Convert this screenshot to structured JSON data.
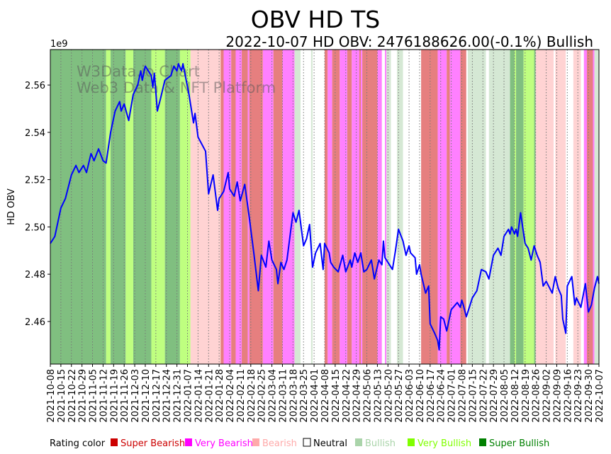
{
  "chart_data": {
    "type": "line",
    "title": "OBV HD TS",
    "subtitle": "2022-10-07 HD OBV: 2476188626.00(-0.1%) Bullish",
    "ylabel": "HD OBV",
    "y_multiplier_label": "1e9",
    "x_start_date": "2021-10-08",
    "x_unit": "days since 2021-10-08",
    "xlim": [
      0,
      364
    ],
    "ylim": [
      2.442,
      2.575
    ],
    "yticks": [
      2.46,
      2.48,
      2.5,
      2.52,
      2.54,
      2.56
    ],
    "ytick_labels": [
      "2.46",
      "2.48",
      "2.50",
      "2.52",
      "2.54",
      "2.56"
    ],
    "xtick_labels": [
      "2021-10-08",
      "2021-10-15",
      "2021-10-22",
      "2021-10-29",
      "2021-11-05",
      "2021-11-12",
      "2021-11-19",
      "2021-11-26",
      "2021-12-03",
      "2021-12-10",
      "2021-12-17",
      "2021-12-24",
      "2021-12-31",
      "2022-01-07",
      "2022-01-14",
      "2022-01-21",
      "2022-01-28",
      "2022-02-04",
      "2022-02-11",
      "2022-02-18",
      "2022-02-25",
      "2022-03-04",
      "2022-03-11",
      "2022-03-18",
      "2022-03-25",
      "2022-04-01",
      "2022-04-08",
      "2022-04-15",
      "2022-04-22",
      "2022-04-29",
      "2022-05-06",
      "2022-05-13",
      "2022-05-20",
      "2022-05-27",
      "2022-06-03",
      "2022-06-10",
      "2022-06-17",
      "2022-06-24",
      "2022-07-01",
      "2022-07-08",
      "2022-07-15",
      "2022-07-22",
      "2022-07-29",
      "2022-08-05",
      "2022-08-12",
      "2022-08-19",
      "2022-08-26",
      "2022-09-02",
      "2022-09-09",
      "2022-09-16",
      "2022-09-23",
      "2022-09-30",
      "2022-10-07"
    ],
    "xtick_step_days": 7,
    "series": [
      {
        "name": "HD OBV",
        "color": "#0000ff",
        "points": [
          [
            0,
            2.493
          ],
          [
            3,
            2.496
          ],
          [
            7,
            2.508
          ],
          [
            10,
            2.512
          ],
          [
            14,
            2.522
          ],
          [
            17,
            2.526
          ],
          [
            19,
            2.523
          ],
          [
            22,
            2.526
          ],
          [
            24,
            2.523
          ],
          [
            27,
            2.531
          ],
          [
            29,
            2.528
          ],
          [
            32,
            2.533
          ],
          [
            35,
            2.528
          ],
          [
            37,
            2.527
          ],
          [
            40,
            2.54
          ],
          [
            43,
            2.549
          ],
          [
            46,
            2.553
          ],
          [
            47,
            2.549
          ],
          [
            49,
            2.552
          ],
          [
            52,
            2.545
          ],
          [
            55,
            2.556
          ],
          [
            58,
            2.56
          ],
          [
            60,
            2.566
          ],
          [
            61,
            2.562
          ],
          [
            63,
            2.568
          ],
          [
            67,
            2.564
          ],
          [
            68,
            2.559
          ],
          [
            69,
            2.565
          ],
          [
            71,
            2.549
          ],
          [
            73,
            2.554
          ],
          [
            76,
            2.562
          ],
          [
            80,
            2.564
          ],
          [
            82,
            2.568
          ],
          [
            84,
            2.566
          ],
          [
            85,
            2.569
          ],
          [
            87,
            2.566
          ],
          [
            88,
            2.569
          ],
          [
            92,
            2.556
          ],
          [
            95,
            2.544
          ],
          [
            96,
            2.548
          ],
          [
            98,
            2.538
          ],
          [
            103,
            2.532
          ],
          [
            105,
            2.514
          ],
          [
            108,
            2.522
          ],
          [
            111,
            2.507
          ],
          [
            112,
            2.512
          ],
          [
            115,
            2.515
          ],
          [
            118,
            2.523
          ],
          [
            119,
            2.516
          ],
          [
            122,
            2.513
          ],
          [
            124,
            2.519
          ],
          [
            126,
            2.511
          ],
          [
            129,
            2.518
          ],
          [
            132,
            2.504
          ],
          [
            135,
            2.489
          ],
          [
            138,
            2.473
          ],
          [
            140,
            2.488
          ],
          [
            143,
            2.483
          ],
          [
            145,
            2.494
          ],
          [
            147,
            2.486
          ],
          [
            150,
            2.482
          ],
          [
            151,
            2.476
          ],
          [
            153,
            2.485
          ],
          [
            155,
            2.482
          ],
          [
            157,
            2.486
          ],
          [
            159,
            2.496
          ],
          [
            161,
            2.506
          ],
          [
            163,
            2.502
          ],
          [
            165,
            2.507
          ],
          [
            168,
            2.492
          ],
          [
            170,
            2.495
          ],
          [
            172,
            2.501
          ],
          [
            174,
            2.483
          ],
          [
            176,
            2.489
          ],
          [
            179,
            2.493
          ],
          [
            181,
            2.482
          ],
          [
            182,
            2.493
          ],
          [
            185,
            2.489
          ],
          [
            186,
            2.485
          ],
          [
            188,
            2.483
          ],
          [
            191,
            2.481
          ],
          [
            194,
            2.488
          ],
          [
            196,
            2.481
          ],
          [
            199,
            2.486
          ],
          [
            200,
            2.483
          ],
          [
            202,
            2.489
          ],
          [
            204,
            2.485
          ],
          [
            206,
            2.489
          ],
          [
            208,
            2.481
          ],
          [
            210,
            2.482
          ],
          [
            213,
            2.486
          ],
          [
            215,
            2.478
          ],
          [
            218,
            2.486
          ],
          [
            220,
            2.484
          ],
          [
            221,
            2.494
          ],
          [
            222,
            2.487
          ],
          [
            224,
            2.485
          ],
          [
            227,
            2.482
          ],
          [
            229,
            2.49
          ],
          [
            231,
            2.499
          ],
          [
            234,
            2.494
          ],
          [
            236,
            2.488
          ],
          [
            238,
            2.492
          ],
          [
            239,
            2.489
          ],
          [
            242,
            2.487
          ],
          [
            243,
            2.48
          ],
          [
            245,
            2.484
          ],
          [
            246,
            2.48
          ],
          [
            249,
            2.472
          ],
          [
            251,
            2.475
          ],
          [
            252,
            2.459
          ],
          [
            255,
            2.455
          ],
          [
            257,
            2.452
          ],
          [
            258,
            2.448
          ],
          [
            259,
            2.462
          ],
          [
            261,
            2.461
          ],
          [
            263,
            2.456
          ],
          [
            266,
            2.465
          ],
          [
            270,
            2.468
          ],
          [
            272,
            2.466
          ],
          [
            273,
            2.469
          ],
          [
            274,
            2.467
          ],
          [
            276,
            2.462
          ],
          [
            280,
            2.47
          ],
          [
            283,
            2.473
          ],
          [
            286,
            2.482
          ],
          [
            289,
            2.481
          ],
          [
            291,
            2.478
          ],
          [
            294,
            2.488
          ],
          [
            297,
            2.491
          ],
          [
            299,
            2.488
          ],
          [
            301,
            2.496
          ],
          [
            304,
            2.499
          ],
          [
            305,
            2.497
          ],
          [
            306,
            2.5
          ],
          [
            308,
            2.497
          ],
          [
            309,
            2.499
          ],
          [
            310,
            2.496
          ],
          [
            312,
            2.506
          ],
          [
            315,
            2.493
          ],
          [
            317,
            2.491
          ],
          [
            319,
            2.486
          ],
          [
            321,
            2.492
          ],
          [
            323,
            2.488
          ],
          [
            325,
            2.485
          ],
          [
            327,
            2.475
          ],
          [
            329,
            2.477
          ],
          [
            333,
            2.472
          ],
          [
            335,
            2.479
          ],
          [
            337,
            2.474
          ],
          [
            339,
            2.471
          ],
          [
            340,
            2.461
          ],
          [
            342,
            2.455
          ],
          [
            343,
            2.475
          ],
          [
            346,
            2.479
          ],
          [
            348,
            2.467
          ],
          [
            349,
            2.47
          ],
          [
            352,
            2.466
          ],
          [
            355,
            2.476
          ],
          [
            357,
            2.464
          ],
          [
            359,
            2.467
          ],
          [
            361,
            2.474
          ],
          [
            363,
            2.479
          ],
          [
            364,
            2.476
          ]
        ]
      }
    ],
    "rating_bands": [
      [
        0,
        37,
        "SB"
      ],
      [
        37,
        40,
        "VB"
      ],
      [
        40,
        50,
        "SB"
      ],
      [
        50,
        55,
        "VB"
      ],
      [
        55,
        67,
        "SB"
      ],
      [
        67,
        76,
        "VB"
      ],
      [
        76,
        86,
        "SB"
      ],
      [
        86,
        93,
        "VB"
      ],
      [
        93,
        113,
        "Be"
      ],
      [
        113,
        115,
        "SBe"
      ],
      [
        115,
        120,
        "VBe"
      ],
      [
        120,
        123,
        "SBe"
      ],
      [
        123,
        127,
        "VBe"
      ],
      [
        127,
        131,
        "SBe"
      ],
      [
        131,
        132,
        "VBe"
      ],
      [
        132,
        141,
        "SBe"
      ],
      [
        141,
        148,
        "VBe"
      ],
      [
        148,
        154,
        "SBe"
      ],
      [
        154,
        162,
        "VBe"
      ],
      [
        162,
        166,
        "B"
      ],
      [
        166,
        173,
        "N"
      ],
      [
        173,
        174,
        "B"
      ],
      [
        174,
        182,
        "N"
      ],
      [
        182,
        184,
        "SBe"
      ],
      [
        184,
        187,
        "VBe"
      ],
      [
        187,
        192,
        "SBe"
      ],
      [
        192,
        197,
        "VBe"
      ],
      [
        197,
        200,
        "SBe"
      ],
      [
        200,
        205,
        "VBe"
      ],
      [
        205,
        206,
        "SBe"
      ],
      [
        206,
        207,
        "VBe"
      ],
      [
        207,
        217,
        "SBe"
      ],
      [
        217,
        220,
        "VBe"
      ],
      [
        220,
        222,
        "N"
      ],
      [
        222,
        223,
        "VBe"
      ],
      [
        223,
        226,
        "B"
      ],
      [
        226,
        230,
        "N"
      ],
      [
        230,
        234,
        "B"
      ],
      [
        234,
        246,
        "N"
      ],
      [
        246,
        257,
        "SBe"
      ],
      [
        257,
        263,
        "VBe"
      ],
      [
        263,
        265,
        "SBe"
      ],
      [
        265,
        272,
        "VBe"
      ],
      [
        272,
        276,
        "SBe"
      ],
      [
        276,
        277,
        "N"
      ],
      [
        277,
        289,
        "B"
      ],
      [
        289,
        291,
        "N"
      ],
      [
        291,
        305,
        "B"
      ],
      [
        305,
        308,
        "SB"
      ],
      [
        308,
        309,
        "VB"
      ],
      [
        309,
        314,
        "SB"
      ],
      [
        314,
        321,
        "VB"
      ],
      [
        321,
        322,
        "SB"
      ],
      [
        322,
        334,
        "Be"
      ],
      [
        334,
        335,
        "N"
      ],
      [
        335,
        342,
        "Be"
      ],
      [
        342,
        347,
        "N"
      ],
      [
        347,
        352,
        "Be"
      ],
      [
        352,
        354,
        "N"
      ],
      [
        354,
        356,
        "VBe"
      ],
      [
        356,
        360,
        "SBe"
      ],
      [
        360,
        361,
        "VBe"
      ],
      [
        361,
        364,
        "B"
      ]
    ],
    "band_colors": {
      "SBe": "#e67f7f",
      "VBe": "#ff80ff",
      "Be": "#ffd3d3",
      "N": "#ffffff",
      "B": "#d5e8d4",
      "VB": "#bfff80",
      "SB": "#80bf80"
    },
    "watermark": [
      "W3Data.io Chart",
      "Web3 Data & NFT Platform"
    ],
    "legend": {
      "title": "Rating color",
      "placement": "bottom",
      "items": [
        {
          "label": "Super Bearish",
          "color": "#cc0000",
          "text_color": "#cc0000"
        },
        {
          "label": "Very Bearish",
          "color": "#ff00ff",
          "text_color": "#ff00ff"
        },
        {
          "label": "Bearish",
          "color": "#ffaaaa",
          "text_color": "#ffaaaa"
        },
        {
          "label": "Neutral",
          "color": "#ffffff",
          "text_color": "#000000"
        },
        {
          "label": "Bullish",
          "color": "#aad4aa",
          "text_color": "#aad4aa"
        },
        {
          "label": "Very Bullish",
          "color": "#80ff00",
          "text_color": "#80ff00"
        },
        {
          "label": "Super Bullish",
          "color": "#008000",
          "text_color": "#008000"
        }
      ]
    }
  }
}
